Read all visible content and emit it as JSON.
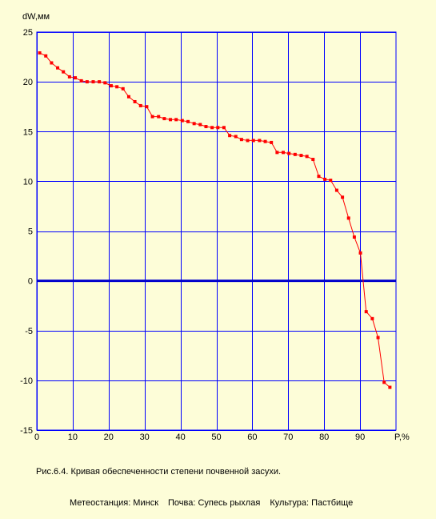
{
  "chart_data": {
    "type": "line",
    "ylabel": "dW,мм",
    "xlabel": "P,%",
    "xlim": [
      0,
      100
    ],
    "ylim": [
      -15,
      25
    ],
    "x_ticks": [
      0,
      10,
      20,
      30,
      40,
      50,
      60,
      70,
      80,
      90
    ],
    "y_ticks": [
      25,
      20,
      15,
      10,
      5,
      0,
      -5,
      -10,
      -15
    ],
    "grid": true,
    "zero_line": true,
    "colors": {
      "background": "#fdfdd8",
      "grid": "#0000ff",
      "series": "#ff0000",
      "zero_line": "#0000cc"
    },
    "series": [
      {
        "x": [
          0.8,
          2.5,
          4.1,
          5.8,
          7.4,
          9.1,
          10.7,
          12.4,
          14.0,
          15.7,
          17.4,
          19.0,
          20.7,
          22.3,
          24.0,
          25.6,
          27.3,
          28.9,
          30.6,
          32.2,
          33.9,
          35.5,
          37.2,
          38.8,
          40.5,
          42.1,
          43.8,
          45.5,
          47.1,
          48.8,
          50.4,
          52.1,
          53.7,
          55.4,
          57.0,
          58.7,
          60.3,
          62.0,
          63.6,
          65.3,
          66.9,
          68.6,
          70.2,
          71.9,
          73.6,
          75.2,
          76.9,
          78.5,
          80.2,
          81.8,
          83.5,
          85.1,
          86.8,
          88.4,
          90.1,
          91.7,
          93.4,
          95.0,
          96.7,
          98.3
        ],
        "values": [
          22.9,
          22.6,
          21.9,
          21.4,
          21.0,
          20.5,
          20.4,
          20.1,
          20.0,
          20.0,
          20.0,
          19.9,
          19.6,
          19.5,
          19.3,
          18.5,
          18.0,
          17.6,
          17.5,
          16.5,
          16.5,
          16.3,
          16.2,
          16.2,
          16.1,
          16.0,
          15.8,
          15.7,
          15.5,
          15.4,
          15.4,
          15.4,
          14.6,
          14.5,
          14.2,
          14.1,
          14.1,
          14.1,
          14.0,
          13.9,
          12.9,
          12.9,
          12.8,
          12.7,
          12.6,
          12.5,
          12.2,
          10.5,
          10.2,
          10.1,
          9.1,
          8.4,
          6.3,
          4.4,
          2.8,
          -3.1,
          -3.8,
          -5.7,
          -10.2,
          -10.7
        ]
      }
    ]
  },
  "caption": {
    "title": "Рис.6.4. Кривая обеспеченности степени почвенной засухи.",
    "station": "Метеостанция: Минск",
    "soil": "Почва: Супесь рыхлая",
    "crop": "Культура: Пастбище"
  }
}
